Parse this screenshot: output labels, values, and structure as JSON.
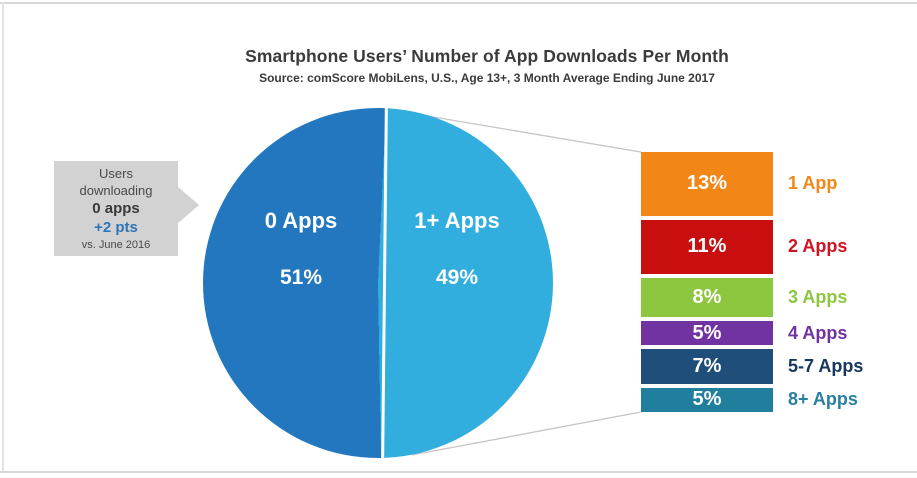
{
  "title": "Smartphone Users’ Number of App Downloads Per Month",
  "subtitle": "Source: comScore MobiLens, U.S., Age 13+, 3 Month Average Ending June 2017",
  "colors": {
    "pie_zero": "#2277BE",
    "pie_oneplus": "#31AEDE",
    "connector": "#c6c6c6",
    "callout_bg": "#d2d2d2",
    "callout_accent": "#2E75B6"
  },
  "callout": {
    "line1": "Users",
    "line2": "downloading",
    "line3": "0 apps",
    "line4": "+2 pts",
    "line5": "vs. June 2016"
  },
  "pie": {
    "left": {
      "label": "0 Apps",
      "pct": "51%"
    },
    "right": {
      "label": "1+ Apps",
      "pct": "49%"
    }
  },
  "breakdown": {
    "items": [
      {
        "pct": "13%",
        "label": "1 App",
        "value": 13,
        "color": "#F28718",
        "label_color": "#F28718"
      },
      {
        "pct": "11%",
        "label": "2 Apps",
        "value": 11,
        "color": "#C90E10",
        "label_color": "#D01320"
      },
      {
        "pct": "8%",
        "label": "3 Apps",
        "value": 8,
        "color": "#8DC63F",
        "label_color": "#8DC63F"
      },
      {
        "pct": "5%",
        "label": "4 Apps",
        "value": 5,
        "color": "#7233A2",
        "label_color": "#7233A2"
      },
      {
        "pct": "7%",
        "label": "5-7 Apps",
        "value": 7,
        "color": "#1E4E79",
        "label_color": "#17375E"
      },
      {
        "pct": "5%",
        "label": "8+ Apps",
        "value": 5,
        "color": "#217F9E",
        "label_color": "#2A7F9E"
      }
    ]
  },
  "chart_data": [
    {
      "type": "pie",
      "title": "Smartphone Users’ Number of App Downloads Per Month",
      "subtitle": "Source: comScore MobiLens, U.S., Age 13+, 3 Month Average Ending June 2017",
      "categories": [
        "0 Apps",
        "1+ Apps"
      ],
      "values": [
        51,
        49
      ],
      "unit": "%",
      "colors": [
        "#2277BE",
        "#31AEDE"
      ],
      "annotation": "Users downloading 0 apps +2 pts vs. June 2016"
    },
    {
      "type": "bar",
      "title": "Breakdown of 1+ Apps segment",
      "categories": [
        "1 App",
        "2 Apps",
        "3 Apps",
        "4 Apps",
        "5-7 Apps",
        "8+ Apps"
      ],
      "values": [
        13,
        11,
        8,
        5,
        7,
        5
      ],
      "unit": "%",
      "colors": [
        "#F28718",
        "#C90E10",
        "#8DC63F",
        "#7233A2",
        "#1E4E79",
        "#217F9E"
      ],
      "legend_position": "right"
    }
  ]
}
